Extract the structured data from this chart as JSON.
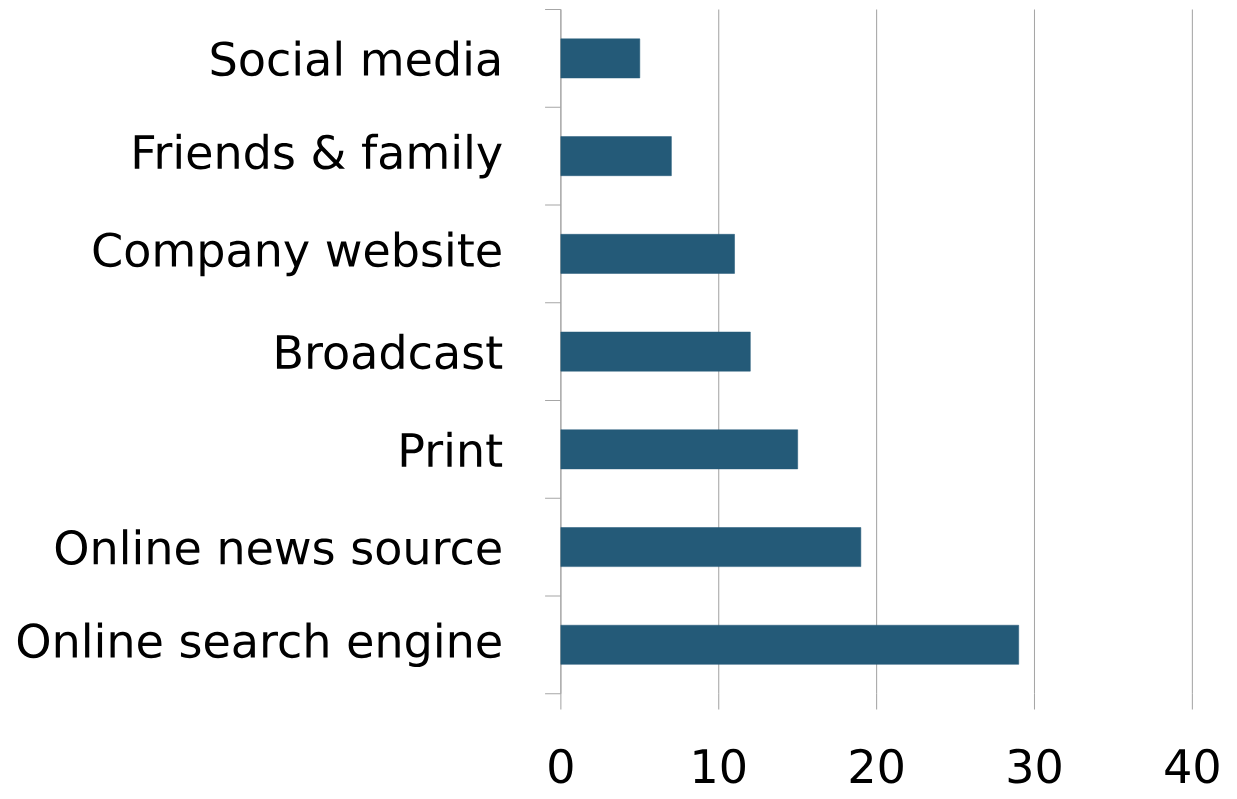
{
  "chart_data": {
    "type": "bar",
    "orientation": "horizontal",
    "categories": [
      "Social media",
      "Friends & family",
      "Company website",
      "Broadcast",
      "Print",
      "Online news source",
      "Online search engine"
    ],
    "values": [
      5,
      7,
      11,
      12,
      15,
      19,
      29
    ],
    "color": "#245a78",
    "xlim": [
      0,
      40
    ],
    "xticks": [
      0,
      10,
      20,
      30,
      40
    ],
    "grid": "x"
  }
}
